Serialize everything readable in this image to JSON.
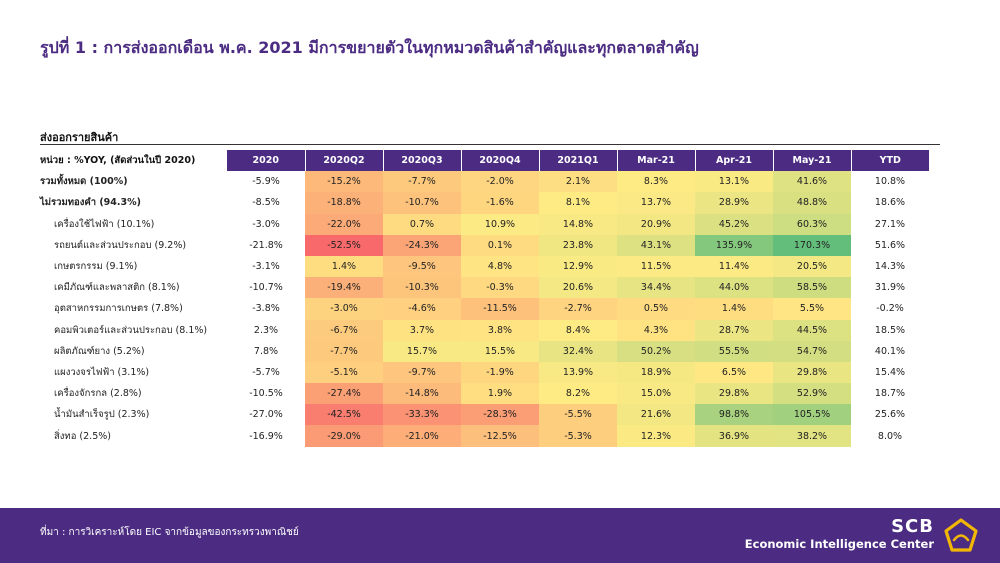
{
  "title": "รูปที่ 1 : การส่งออกเดือน พ.ค. 2021 มีการขยายตัวในทุกหมวดสินค้าสำคัญและทุกตลาดสำคัญ",
  "section_label": "ส่งออกรายสินค้า",
  "source": "ที่มา : การวิเคราะห์โดย EIC จากข้อมูลของกระทรวงพาณิชย์",
  "brand": {
    "name": "SCB",
    "subtitle": "Economic Intelligence Center"
  },
  "colors": {
    "header_bg": "#4b2c82",
    "scale_low": "#f8696b",
    "scale_mid": "#ffeb84",
    "scale_high": "#63be7b"
  },
  "chart_data": {
    "type": "table",
    "unit_label": "หน่วย : %YOY, (สัดส่วนในปี 2020)",
    "columns": [
      "2020",
      "2020Q2",
      "2020Q3",
      "2020Q4",
      "2021Q1",
      "Mar-21",
      "Apr-21",
      "May-21",
      "YTD"
    ],
    "heatmap_columns": [
      "2020Q2",
      "2020Q3",
      "2020Q4",
      "2021Q1",
      "Mar-21",
      "Apr-21",
      "May-21"
    ],
    "rows": [
      {
        "label": "รวมทั้งหมด (100%)",
        "bold": true,
        "indent": false,
        "values": [
          -5.9,
          -15.2,
          -7.7,
          -2.0,
          2.1,
          8.3,
          13.1,
          41.6,
          10.8
        ]
      },
      {
        "label": "ไม่รวมทองคำ (94.3%)",
        "bold": true,
        "indent": false,
        "values": [
          -8.5,
          -18.8,
          -10.7,
          -1.6,
          8.1,
          13.7,
          28.9,
          48.8,
          18.6
        ]
      },
      {
        "label": "เครื่องใช้ไฟฟ้า (10.1%)",
        "bold": false,
        "indent": true,
        "values": [
          -3.0,
          -22.0,
          0.7,
          10.9,
          14.8,
          20.9,
          45.2,
          60.3,
          27.1
        ]
      },
      {
        "label": "รถยนต์และส่วนประกอบ (9.2%)",
        "bold": false,
        "indent": true,
        "values": [
          -21.8,
          -52.5,
          -24.3,
          0.1,
          23.8,
          43.1,
          135.9,
          170.3,
          51.6
        ]
      },
      {
        "label": "เกษตรกรรม (9.1%)",
        "bold": false,
        "indent": true,
        "values": [
          -3.1,
          1.4,
          -9.5,
          4.8,
          12.9,
          11.5,
          11.4,
          20.5,
          14.3
        ]
      },
      {
        "label": "เคมีภัณฑ์และพลาสติก (8.1%)",
        "bold": false,
        "indent": true,
        "values": [
          -10.7,
          -19.4,
          -10.3,
          -0.3,
          20.6,
          34.4,
          44.0,
          58.5,
          31.9
        ]
      },
      {
        "label": "อุตสาหกรรมการเกษตร (7.8%)",
        "bold": false,
        "indent": true,
        "values": [
          -3.8,
          -3.0,
          -4.6,
          -11.5,
          -2.7,
          0.5,
          1.4,
          5.5,
          -0.2
        ]
      },
      {
        "label": "คอมพิวเตอร์และส่วนประกอบ (8.1%)",
        "bold": false,
        "indent": true,
        "values": [
          2.3,
          -6.7,
          3.7,
          3.8,
          8.4,
          4.3,
          28.7,
          44.5,
          18.5
        ]
      },
      {
        "label": "ผลิตภัณฑ์ยาง (5.2%)",
        "bold": false,
        "indent": true,
        "values": [
          7.8,
          -7.7,
          15.7,
          15.5,
          32.4,
          50.2,
          55.5,
          54.7,
          40.1
        ]
      },
      {
        "label": "แผงวงจรไฟฟ้า (3.1%)",
        "bold": false,
        "indent": true,
        "values": [
          -5.7,
          -5.1,
          -9.7,
          -1.9,
          13.9,
          18.9,
          6.5,
          29.8,
          15.4
        ]
      },
      {
        "label": "เครื่องจักรกล (2.8%)",
        "bold": false,
        "indent": true,
        "values": [
          -10.5,
          -27.4,
          -14.8,
          1.9,
          8.2,
          15.0,
          29.8,
          52.9,
          18.7
        ]
      },
      {
        "label": "น้ำมันสำเร็จรูป (2.3%)",
        "bold": false,
        "indent": true,
        "values": [
          -27.0,
          -42.5,
          -33.3,
          -28.3,
          -5.5,
          21.6,
          98.8,
          105.5,
          25.6
        ]
      },
      {
        "label": "สิ่งทอ (2.5%)",
        "bold": false,
        "indent": true,
        "values": [
          -16.9,
          -29.0,
          -21.0,
          -12.5,
          -5.3,
          12.3,
          36.9,
          38.2,
          8.0
        ]
      }
    ]
  }
}
